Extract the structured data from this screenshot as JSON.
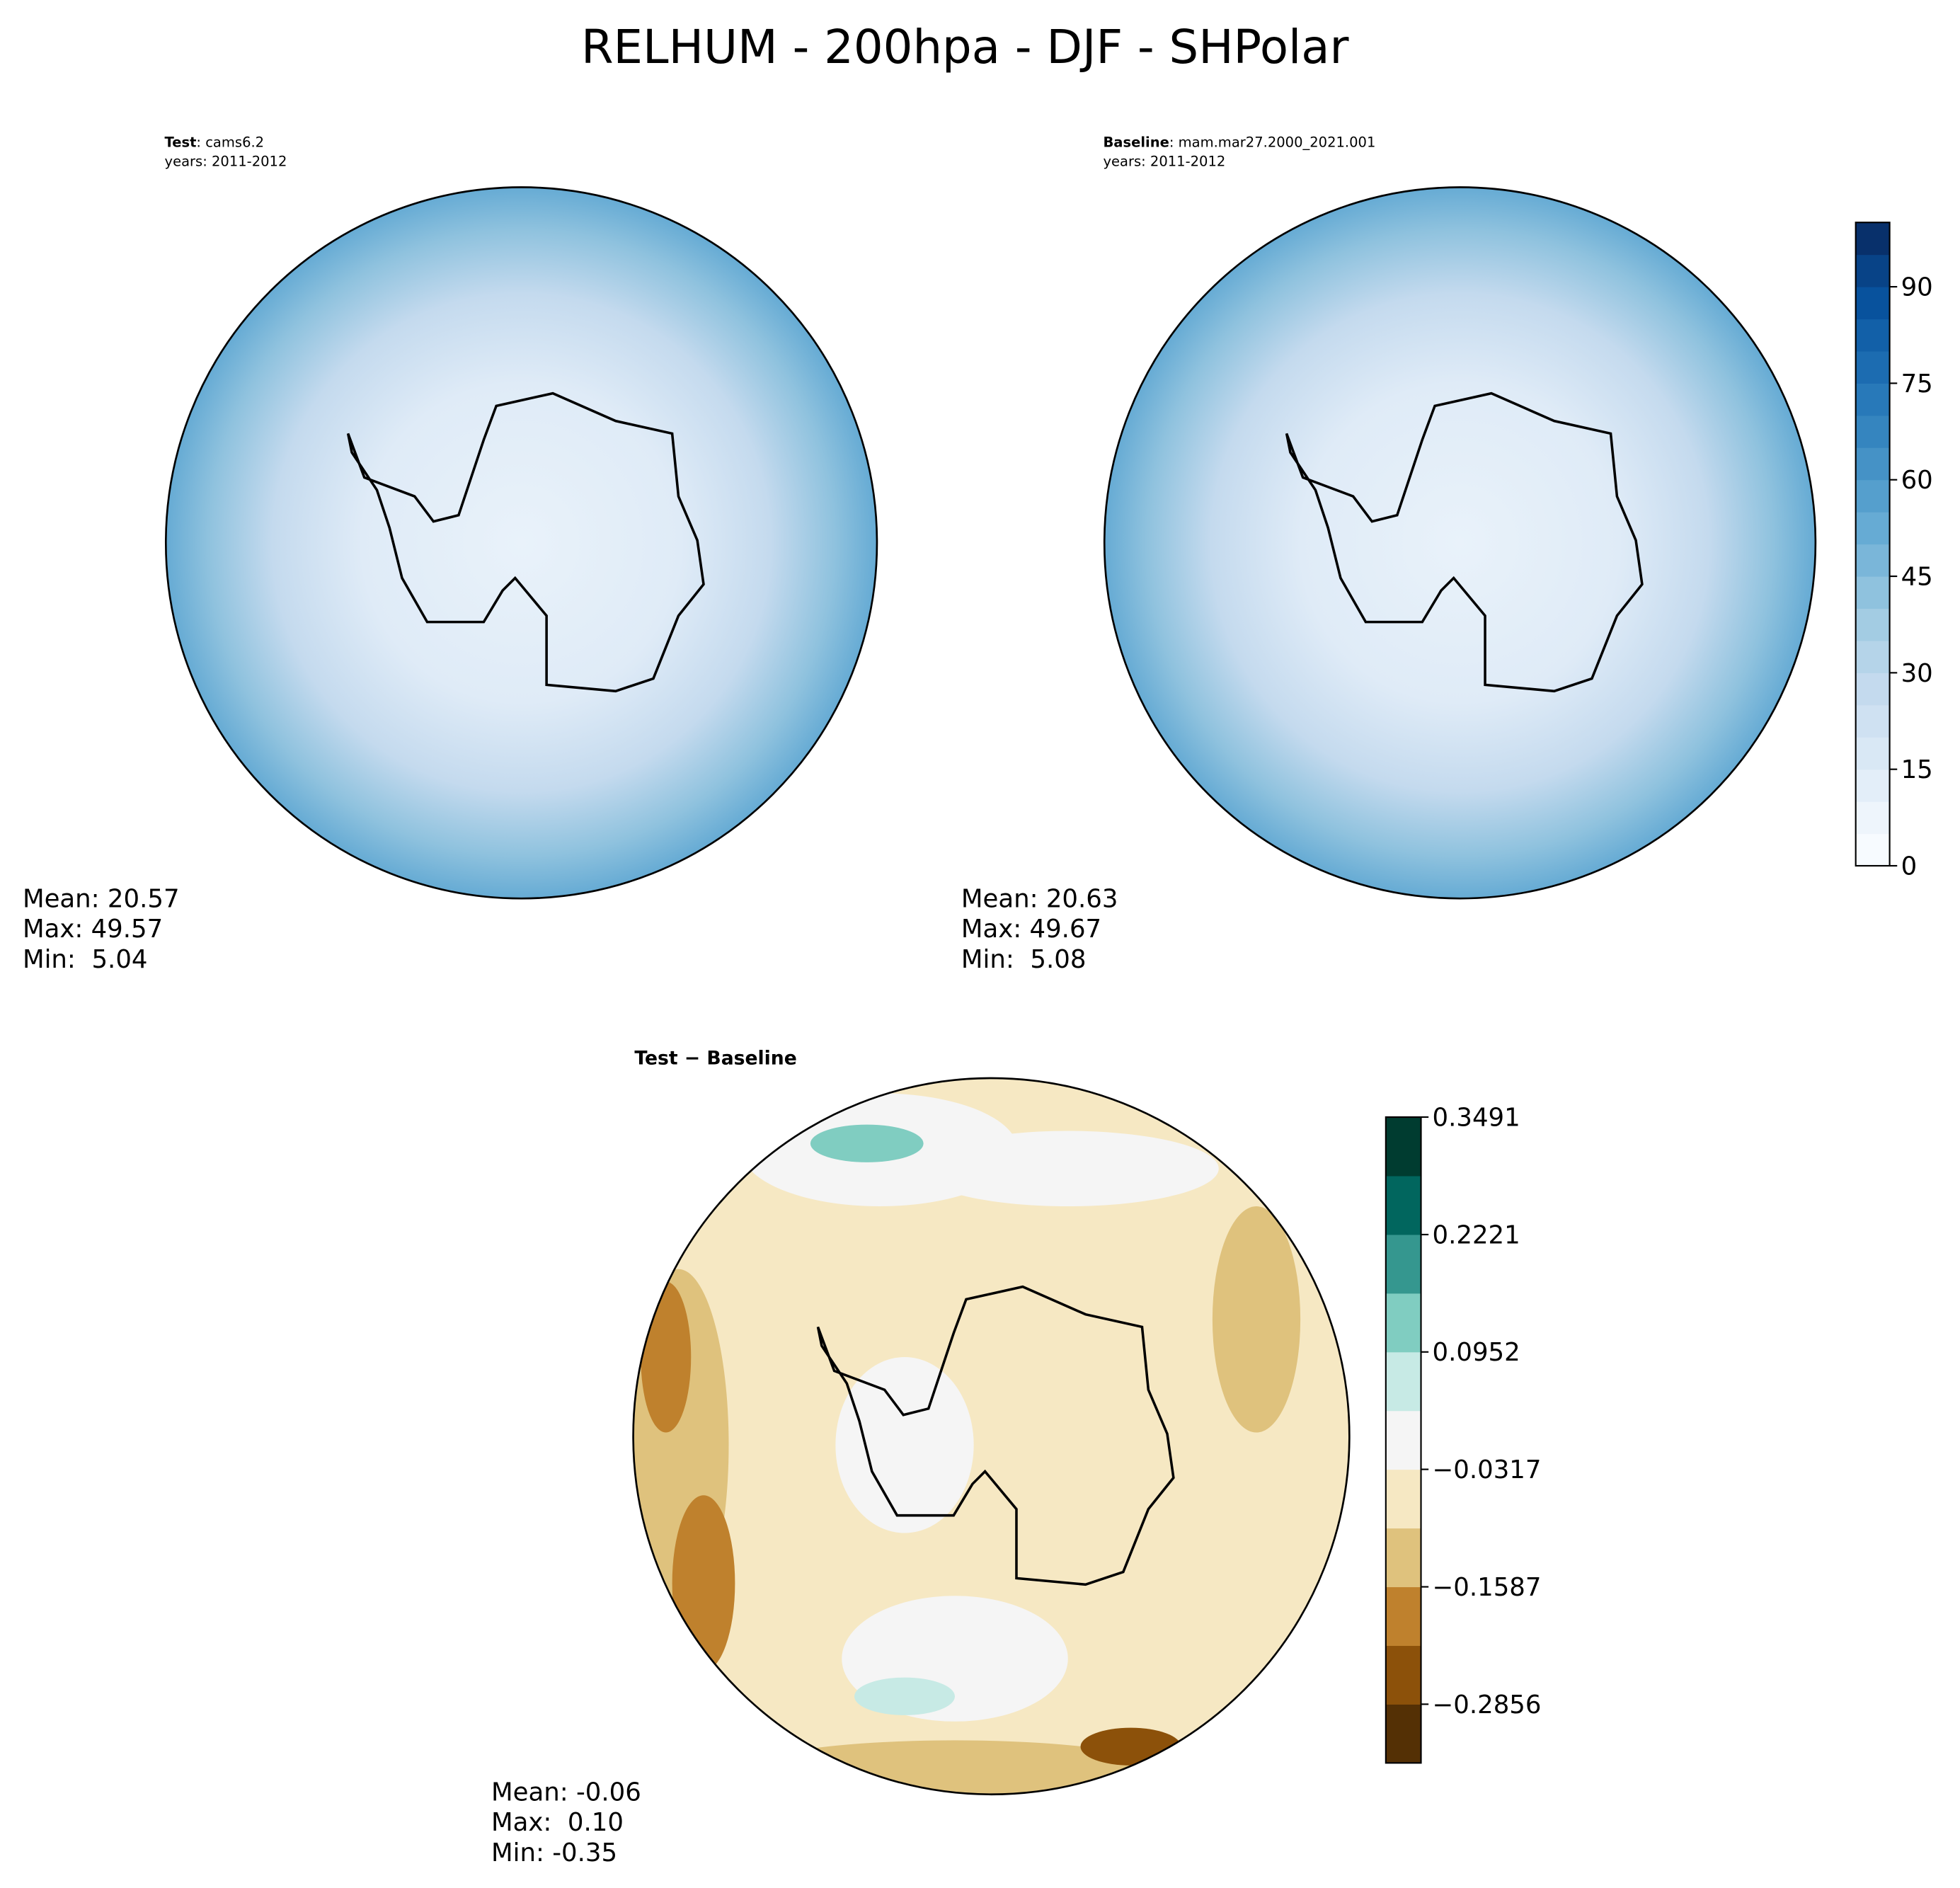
{
  "title": "RELHUM - 200hpa - DJF - SHPolar",
  "chart_data": [
    {
      "type": "map",
      "label": "Test",
      "subtitle": ": cams6.2",
      "years": "years: 2011-2012",
      "stats": [
        "Mean: 20.57",
        "Max: 49.57",
        "Min:  5.04"
      ]
    },
    {
      "type": "map",
      "label": "Baseline",
      "subtitle": ": mam.mar27.2000_2021.001",
      "years": "years: 2011-2012",
      "stats": [
        "Mean: 20.63",
        "Max: 49.67",
        "Min:  5.08"
      ],
      "colorbar": {
        "ylim": [
          0,
          100
        ],
        "yticks": [
          0,
          15,
          30,
          45,
          60,
          75,
          90
        ],
        "colors": [
          "#f7fbff",
          "#eef5fc",
          "#e3eef9",
          "#d9e8f5",
          "#cfe1f2",
          "#c4daee",
          "#b5d4e9",
          "#a3cce3",
          "#8fc2de",
          "#7ab6d9",
          "#66abd4",
          "#559fcd",
          "#4592c6",
          "#3585bf",
          "#2879b9",
          "#1c6cb1",
          "#1260a8",
          "#08529d",
          "#084387",
          "#08306b"
        ]
      }
    },
    {
      "type": "map",
      "label": "Test − Baseline",
      "stats": [
        "Mean: -0.06",
        "Max:  0.10",
        "Min: -0.35"
      ],
      "colorbar": {
        "ylim": [
          -0.3491,
          0.3491
        ],
        "yticks": [
          {
            "value": -0.2856,
            "label": "−0.2856"
          },
          {
            "value": -0.1587,
            "label": "−0.1587"
          },
          {
            "value": -0.0317,
            "label": "−0.0317"
          },
          0.0952,
          0.2221,
          0.3491
        ],
        "colors": [
          "#543005",
          "#8c510a",
          "#bf812d",
          "#dfc27d",
          "#f6e8c3",
          "#f5f5f5",
          "#c7eae5",
          "#80cdc1",
          "#35978f",
          "#01665e",
          "#003c30"
        ]
      }
    }
  ]
}
